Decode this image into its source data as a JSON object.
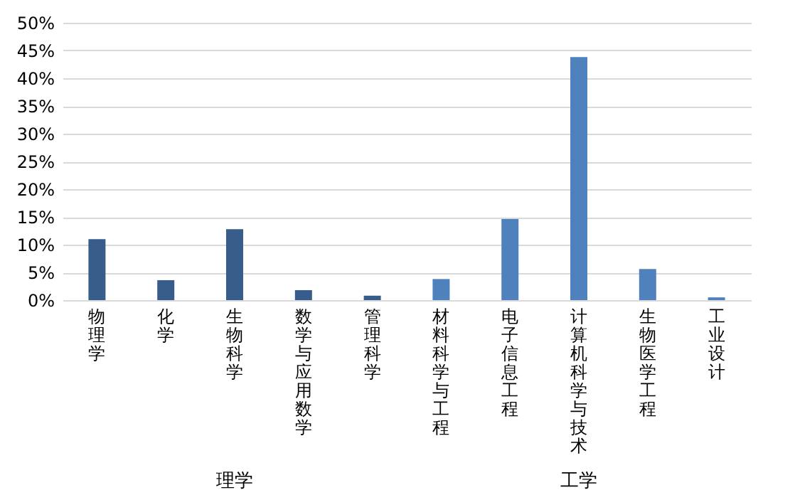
{
  "chart_data": {
    "type": "bar",
    "categories": [
      "物理学",
      "化学",
      "生物科学",
      "数学与应用数学",
      "管理科学",
      "材料科学与工程",
      "电子信息工程",
      "计算机科学与技术",
      "生物医学工程",
      "工业设计"
    ],
    "values": [
      11.0,
      3.6,
      12.8,
      1.8,
      0.8,
      3.8,
      14.6,
      43.8,
      5.6,
      0.5
    ],
    "colors": [
      "#385d8a",
      "#385d8a",
      "#385d8a",
      "#385d8a",
      "#385d8a",
      "#4f81bd",
      "#4f81bd",
      "#4f81bd",
      "#4f81bd",
      "#4f81bd"
    ],
    "ylim": [
      0,
      50
    ],
    "yticks": [
      {
        "value": 0,
        "label": "0%"
      },
      {
        "value": 5,
        "label": "5%"
      },
      {
        "value": 10,
        "label": "10%"
      },
      {
        "value": 15,
        "label": "15%"
      },
      {
        "value": 20,
        "label": "20%"
      },
      {
        "value": 25,
        "label": "25%"
      },
      {
        "value": 30,
        "label": "30%"
      },
      {
        "value": 35,
        "label": "35%"
      },
      {
        "value": 40,
        "label": "40%"
      },
      {
        "value": 45,
        "label": "45%"
      },
      {
        "value": 50,
        "label": "50%"
      }
    ],
    "grid": "y",
    "annotations": [
      "理学",
      "工学"
    ]
  }
}
